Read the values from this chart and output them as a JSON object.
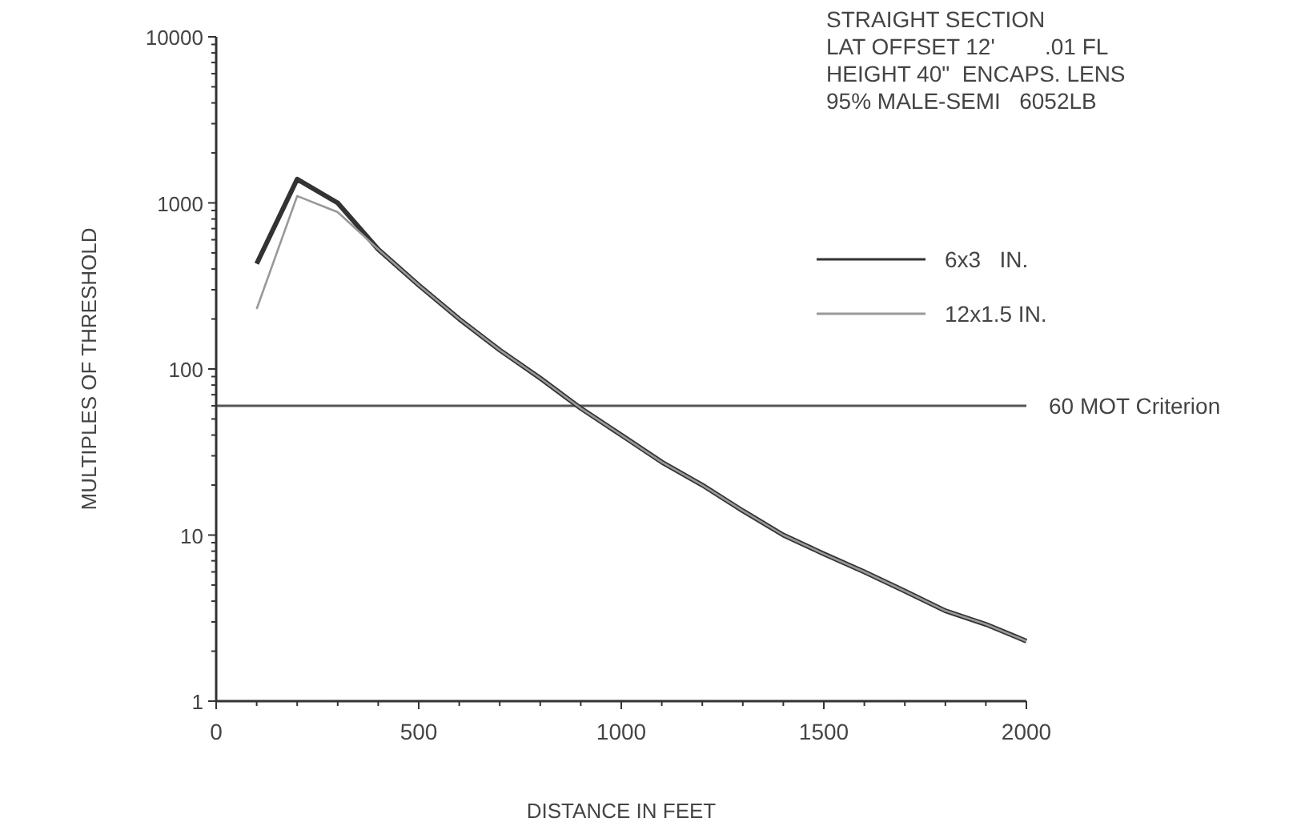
{
  "chart_data": {
    "type": "line",
    "xlabel": "DISTANCE IN FEET",
    "ylabel": "MULTIPLES OF THRESHOLD",
    "annotations": [
      "STRAIGHT SECTION",
      "LAT OFFSET 12'        .01 FL",
      "HEIGHT 40\"  ENCAPS. LENS",
      "95% MALE-SEMI   6052LB"
    ],
    "x": [
      100,
      200,
      300,
      400,
      500,
      600,
      700,
      800,
      900,
      1000,
      1100,
      1200,
      1300,
      1400,
      1500,
      1600,
      1700,
      1800,
      1900,
      2000
    ],
    "series": [
      {
        "name": "6x3   IN.",
        "color": "#333333",
        "values": [
          430,
          1390,
          1000,
          525,
          320,
          200,
          130,
          88,
          58,
          40,
          27.5,
          20,
          14,
          10,
          7.7,
          6,
          4.6,
          3.5,
          2.9,
          2.3
        ]
      },
      {
        "name": "12x1.5 IN.",
        "color": "#999999",
        "values": [
          230,
          1100,
          880,
          525,
          320,
          200,
          130,
          88,
          58,
          40,
          27.5,
          20,
          14,
          10,
          7.7,
          6,
          4.6,
          3.5,
          2.9,
          2.3
        ]
      }
    ],
    "log": "y",
    "xlim": [
      0,
      2000
    ],
    "ylim": [
      1,
      10000
    ],
    "xticks": [
      0,
      {
        "value": 100,
        "label": null
      },
      {
        "value": 200,
        "label": null
      },
      {
        "value": 300,
        "label": null
      },
      {
        "value": 400,
        "label": null
      },
      500,
      {
        "value": 600,
        "label": null
      },
      {
        "value": 700,
        "label": null
      },
      {
        "value": 800,
        "label": null
      },
      {
        "value": 900,
        "label": null
      },
      1000,
      {
        "value": 1100,
        "label": null
      },
      {
        "value": 1200,
        "label": null
      },
      {
        "value": 1300,
        "label": null
      },
      {
        "value": 1400,
        "label": null
      },
      1500,
      {
        "value": 1600,
        "label": null
      },
      {
        "value": 1700,
        "label": null
      },
      {
        "value": 1800,
        "label": null
      },
      {
        "value": 1900,
        "label": null
      },
      2000
    ],
    "yticks": [
      1,
      10,
      100,
      1000,
      10000
    ],
    "ref_lines": [
      {
        "axis": "y",
        "value": 60,
        "label": "60 MOT Criterion",
        "color": "#555555"
      }
    ],
    "legend": "right",
    "marker": "none",
    "line_style": "solid",
    "grid": false
  }
}
